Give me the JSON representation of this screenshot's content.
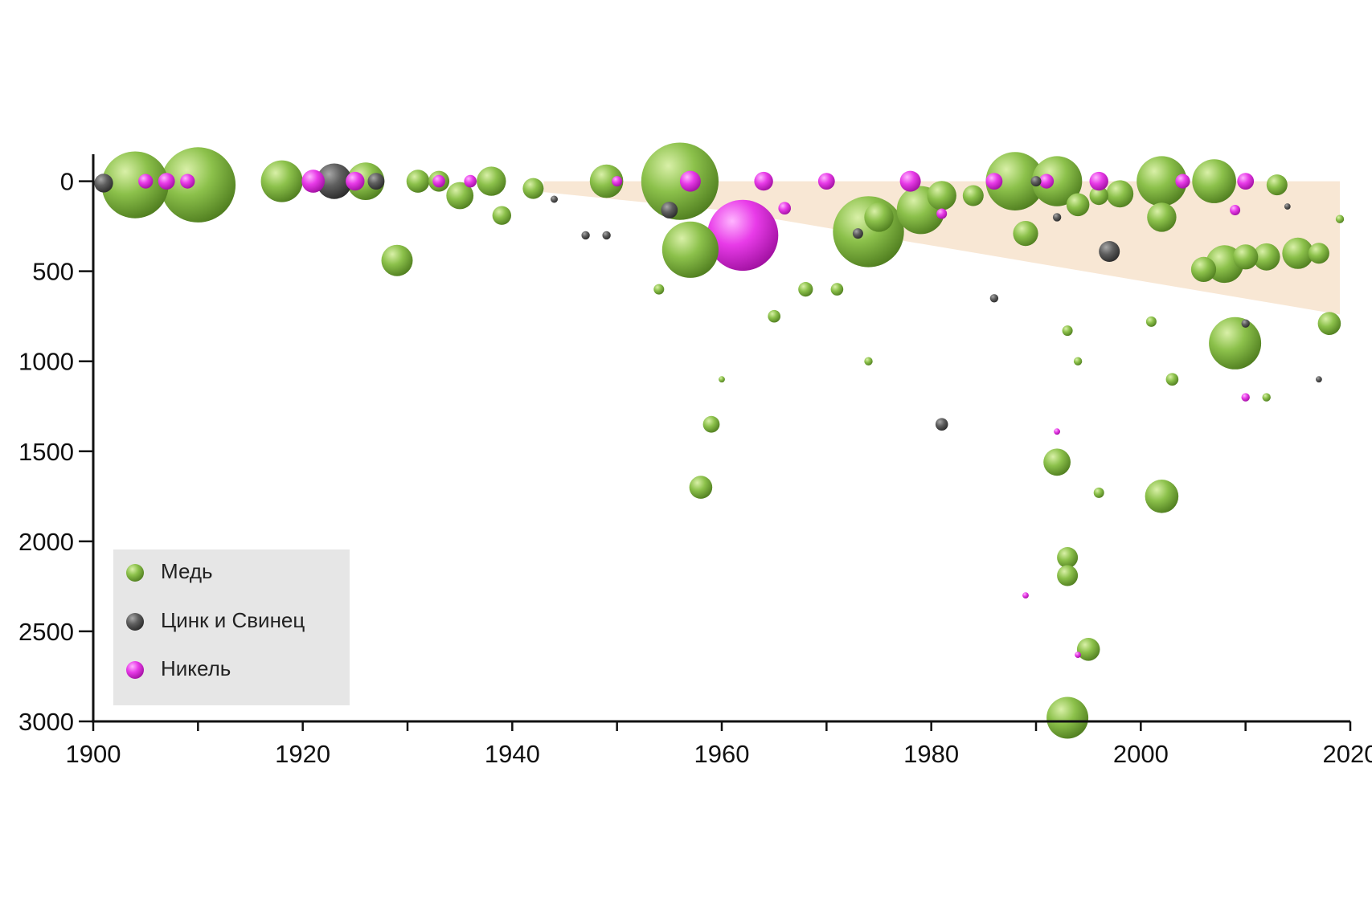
{
  "chart_data": {
    "type": "scatter",
    "x_axis": {
      "range": [
        1900,
        2020
      ],
      "ticks": [
        1900,
        1920,
        1940,
        1960,
        1980,
        2000,
        2020
      ],
      "tick_labels": [
        "1900",
        "1920",
        "1940",
        "1960",
        "1980",
        "2000",
        "2020"
      ],
      "minor_step": 10
    },
    "y_axis": {
      "range": [
        -150,
        3000
      ],
      "inverted": true,
      "ticks": [
        0,
        500,
        1000,
        1500,
        2000,
        2500,
        3000
      ],
      "tick_labels": [
        "0",
        "500",
        "1000",
        "1500",
        "2000",
        "2500",
        "3000"
      ]
    },
    "grid": false,
    "legend_position": "bottom-left",
    "band": {
      "color": "#f6dfc5",
      "points": [
        [
          1943,
          0
        ],
        [
          2019,
          0
        ],
        [
          2019,
          740
        ],
        [
          1960,
          160
        ],
        [
          1943,
          60
        ]
      ]
    },
    "series": [
      {
        "name": "Медь",
        "color": "#8cc14b",
        "points": [
          [
            1904,
            20,
            3.2
          ],
          [
            1910,
            20,
            3.6
          ],
          [
            1918,
            0,
            2.0
          ],
          [
            1926,
            0,
            1.8
          ],
          [
            1929,
            440,
            1.5
          ],
          [
            1931,
            0,
            1.1
          ],
          [
            1933,
            0,
            1.0
          ],
          [
            1935,
            80,
            1.3
          ],
          [
            1938,
            0,
            1.4
          ],
          [
            1939,
            190,
            0.9
          ],
          [
            1942,
            40,
            1.0
          ],
          [
            1949,
            0,
            1.6
          ],
          [
            1956,
            0,
            3.7
          ],
          [
            1957,
            380,
            2.7
          ],
          [
            1954,
            600,
            0.5
          ],
          [
            1958,
            1700,
            1.1
          ],
          [
            1959,
            1350,
            0.8
          ],
          [
            1960,
            1100,
            0.3
          ],
          [
            1965,
            750,
            0.6
          ],
          [
            1968,
            600,
            0.7
          ],
          [
            1971,
            600,
            0.6
          ],
          [
            1974,
            280,
            3.4
          ],
          [
            1975,
            200,
            1.4
          ],
          [
            1979,
            160,
            2.3
          ],
          [
            1981,
            80,
            1.4
          ],
          [
            1984,
            80,
            1.0
          ],
          [
            1974,
            1000,
            0.4
          ],
          [
            1988,
            0,
            2.8
          ],
          [
            1989,
            290,
            1.2
          ],
          [
            1992,
            0,
            2.4
          ],
          [
            1994,
            130,
            1.1
          ],
          [
            1996,
            80,
            0.9
          ],
          [
            1998,
            70,
            1.3
          ],
          [
            2002,
            0,
            2.4
          ],
          [
            2002,
            200,
            1.4
          ],
          [
            2001,
            780,
            0.5
          ],
          [
            1992,
            1560,
            1.3
          ],
          [
            1993,
            2090,
            1.0
          ],
          [
            1993,
            2190,
            1.0
          ],
          [
            1995,
            2600,
            1.1
          ],
          [
            1993,
            2980,
            2.0
          ],
          [
            1996,
            1730,
            0.5
          ],
          [
            1993,
            830,
            0.5
          ],
          [
            1994,
            1000,
            0.4
          ],
          [
            2002,
            1750,
            1.6
          ],
          [
            2003,
            1100,
            0.6
          ],
          [
            2007,
            0,
            2.1
          ],
          [
            2009,
            900,
            2.5
          ],
          [
            2006,
            490,
            1.2
          ],
          [
            2008,
            460,
            1.8
          ],
          [
            2010,
            420,
            1.2
          ],
          [
            2012,
            420,
            1.3
          ],
          [
            2015,
            400,
            1.5
          ],
          [
            2017,
            400,
            1.0
          ],
          [
            2018,
            790,
            1.1
          ],
          [
            2013,
            20,
            1.0
          ],
          [
            2019,
            210,
            0.4
          ],
          [
            2012,
            1200,
            0.4
          ]
        ]
      },
      {
        "name": "Цинк и Свинец",
        "color": "#5f5f5f",
        "points": [
          [
            1901,
            10,
            0.9
          ],
          [
            1923,
            0,
            1.7
          ],
          [
            1927,
            0,
            0.8
          ],
          [
            1947,
            300,
            0.4
          ],
          [
            1949,
            300,
            0.4
          ],
          [
            1944,
            100,
            0.35
          ],
          [
            1955,
            160,
            0.8
          ],
          [
            1973,
            290,
            0.5
          ],
          [
            1981,
            1350,
            0.6
          ],
          [
            1990,
            0,
            0.5
          ],
          [
            1997,
            390,
            1.0
          ],
          [
            1986,
            650,
            0.4
          ],
          [
            2010,
            790,
            0.4
          ],
          [
            2017,
            1100,
            0.3
          ],
          [
            2014,
            140,
            0.3
          ],
          [
            1992,
            200,
            0.4
          ]
        ]
      },
      {
        "name": "Никель",
        "color": "#e83be8",
        "points": [
          [
            1905,
            0,
            0.7
          ],
          [
            1907,
            0,
            0.8
          ],
          [
            1909,
            0,
            0.7
          ],
          [
            1921,
            0,
            1.1
          ],
          [
            1925,
            0,
            0.9
          ],
          [
            1933,
            0,
            0.6
          ],
          [
            1936,
            0,
            0.6
          ],
          [
            1950,
            0,
            0.5
          ],
          [
            1957,
            0,
            1.0
          ],
          [
            1962,
            300,
            3.4
          ],
          [
            1964,
            0,
            0.9
          ],
          [
            1966,
            150,
            0.6
          ],
          [
            1970,
            0,
            0.8
          ],
          [
            1978,
            0,
            1.0
          ],
          [
            1981,
            180,
            0.5
          ],
          [
            1986,
            0,
            0.8
          ],
          [
            1991,
            0,
            0.7
          ],
          [
            1996,
            0,
            0.9
          ],
          [
            2004,
            0,
            0.7
          ],
          [
            2010,
            0,
            0.8
          ],
          [
            1989,
            2300,
            0.3
          ],
          [
            1992,
            1390,
            0.3
          ],
          [
            1994,
            2630,
            0.3
          ],
          [
            2010,
            1200,
            0.4
          ],
          [
            2009,
            160,
            0.5
          ]
        ]
      }
    ]
  },
  "legend": {
    "items": [
      {
        "label": "Медь",
        "color": "#8cc14b"
      },
      {
        "label": "Цинк и Свинец",
        "color": "#5f5f5f"
      },
      {
        "label": "Никель",
        "color": "#e83be8"
      }
    ]
  }
}
